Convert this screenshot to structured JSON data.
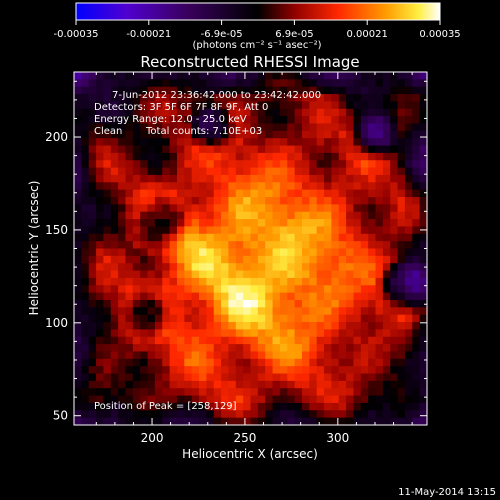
{
  "chart_data": {
    "type": "heatmap",
    "title": "Reconstructed RHESSI Image",
    "xlabel": "Heliocentric X (arcsec)",
    "ylabel": "Heliocentric Y (arcsec)",
    "xlim": [
      158,
      348
    ],
    "ylim": [
      45,
      235
    ],
    "xticks": [
      "200",
      "250",
      "300"
    ],
    "yticks": [
      "50",
      "100",
      "150",
      "200"
    ],
    "colorbar": {
      "range": [
        -0.00035,
        0.00035
      ],
      "tick_labels": [
        "-0.00035",
        "-0.00021",
        "-6.9e-05",
        "6.9e-05",
        "0.00021",
        "0.00035"
      ],
      "unit_label": "(photons cm⁻² s⁻¹ asec⁻²)",
      "colormap": [
        "#0000ff",
        "#5a00c8",
        "#400070",
        "#000000",
        "#a00000",
        "#ff3000",
        "#ff9a00",
        "#ffee40",
        "#ffffff"
      ]
    },
    "annotations": {
      "time": "7-Jun-2012 23:36:42.000 to 23:42:42.000",
      "detectors": "Detectors: 3F 5F 6F 7F 8F 9F, Att 0",
      "energy": "Energy Range: 12.0 - 25.0 keV",
      "clean": "Clean",
      "counts": "Total counts: 7.10E+03",
      "peak": "Position of Peak = [258,129]"
    },
    "peak": [
      258,
      129
    ],
    "grid": false
  },
  "footer": {
    "date": "11-May-2014 13:15"
  }
}
